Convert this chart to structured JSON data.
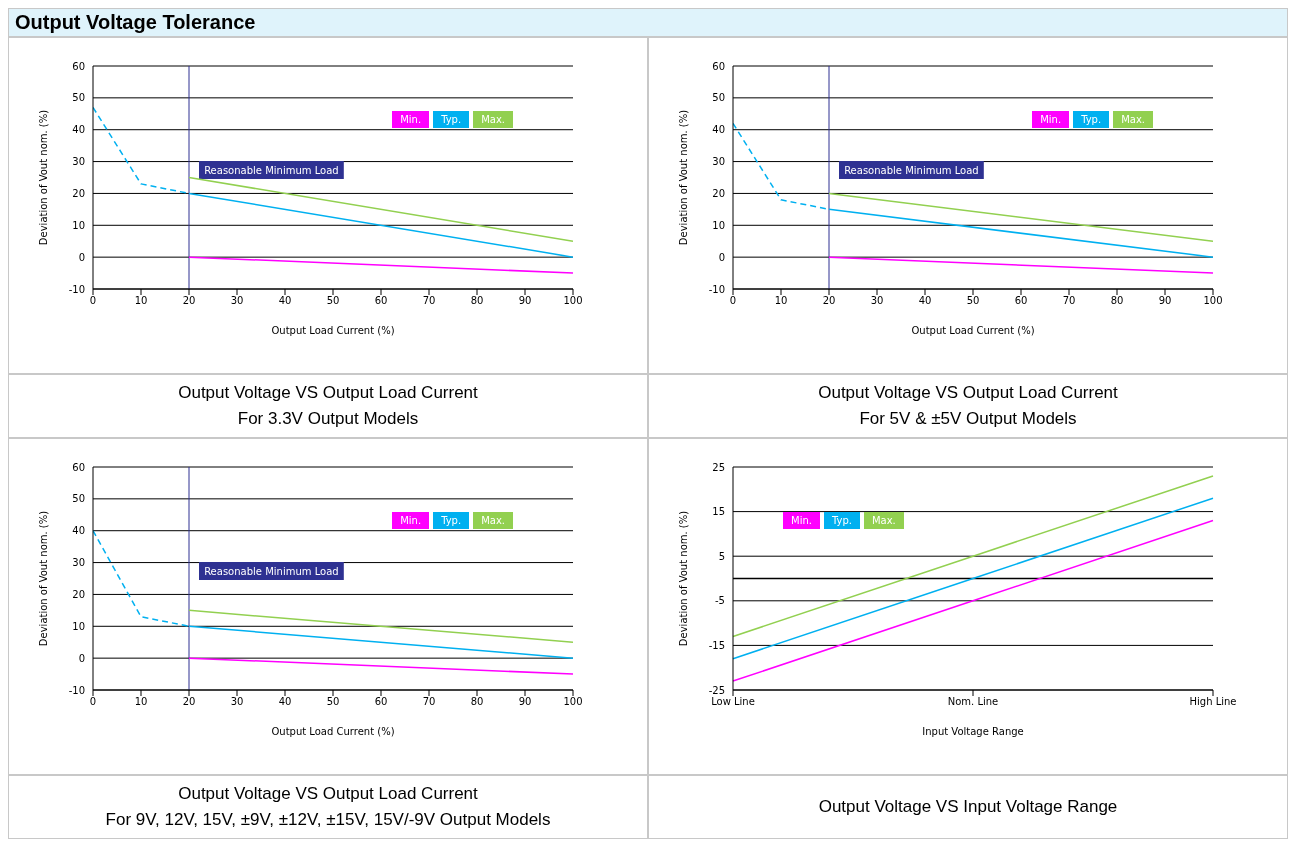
{
  "chart_data": [
    {
      "type": "line",
      "title": "Output Voltage VS Output Load Current",
      "subtitle": "For 3.3V Output Models",
      "annotations": [
        "Output Voltage Tolerance"
      ],
      "xlabel": "Output Load Current (%)",
      "ylabel": "Deviation of Vout nom. (%)",
      "xlim": [
        0,
        100
      ],
      "xticks": [
        0,
        10,
        20,
        30,
        40,
        50,
        60,
        70,
        80,
        90,
        100
      ],
      "ylim": [
        -10,
        60
      ],
      "yticks": [
        -10,
        0,
        10,
        20,
        30,
        40,
        50,
        60
      ],
      "grid": "y",
      "legend": "top right",
      "marker": "none",
      "series": [
        {
          "color": "#00b0f0",
          "line_style": "dashed",
          "x": [
            0,
            10,
            20
          ],
          "values": [
            47,
            23,
            20
          ]
        },
        {
          "name": "Min.",
          "color": "#ff00ff",
          "line_style": "solid",
          "x": [
            20,
            100
          ],
          "values": [
            0,
            -5
          ]
        },
        {
          "name": "Typ.",
          "color": "#00b0f0",
          "line_style": "solid",
          "x": [
            20,
            100
          ],
          "values": [
            20,
            0
          ]
        },
        {
          "name": "Max.",
          "color": "#92d050",
          "line_style": "solid",
          "x": [
            20,
            100
          ],
          "values": [
            25,
            5
          ]
        }
      ],
      "ref_lines": [
        {
          "axis": "x",
          "value": 20,
          "label": "Reasonable Minimum Load",
          "color": "#2e3192"
        }
      ]
    },
    {
      "type": "line",
      "title": "Output Voltage VS Output Load Current",
      "subtitle": "For 5V & ±5V Output Models",
      "xlabel": "Output Load Current (%)",
      "ylabel": "Deviation of Vout nom. (%)",
      "xlim": [
        0,
        100
      ],
      "xticks": [
        0,
        10,
        20,
        30,
        40,
        50,
        60,
        70,
        80,
        90,
        100
      ],
      "ylim": [
        -10,
        60
      ],
      "yticks": [
        -10,
        0,
        10,
        20,
        30,
        40,
        50,
        60
      ],
      "grid": "y",
      "legend": "top right",
      "marker": "none",
      "series": [
        {
          "color": "#00b0f0",
          "line_style": "dashed",
          "x": [
            0,
            10,
            20
          ],
          "values": [
            42,
            18,
            15
          ]
        },
        {
          "name": "Min.",
          "color": "#ff00ff",
          "line_style": "solid",
          "x": [
            20,
            100
          ],
          "values": [
            0,
            -5
          ]
        },
        {
          "name": "Typ.",
          "color": "#00b0f0",
          "line_style": "solid",
          "x": [
            20,
            100
          ],
          "values": [
            15,
            0
          ]
        },
        {
          "name": "Max.",
          "color": "#92d050",
          "line_style": "solid",
          "x": [
            20,
            100
          ],
          "values": [
            20,
            5
          ]
        }
      ],
      "ref_lines": [
        {
          "axis": "x",
          "value": 20,
          "label": "Reasonable Minimum Load",
          "color": "#2e3192"
        }
      ]
    },
    {
      "type": "line",
      "title": "Output Voltage VS Output Load Current",
      "subtitle": "For 9V, 12V, 15V, ±9V, ±12V, ±15V, 15V/-9V Output Models",
      "xlabel": "Output Load Current (%)",
      "ylabel": "Deviation of Vout nom. (%)",
      "xlim": [
        0,
        100
      ],
      "xticks": [
        0,
        10,
        20,
        30,
        40,
        50,
        60,
        70,
        80,
        90,
        100
      ],
      "ylim": [
        -10,
        60
      ],
      "yticks": [
        -10,
        0,
        10,
        20,
        30,
        40,
        50,
        60
      ],
      "grid": "y",
      "legend": "top right",
      "marker": "none",
      "series": [
        {
          "color": "#00b0f0",
          "line_style": "dashed",
          "x": [
            0,
            10,
            20
          ],
          "values": [
            40,
            13,
            10
          ]
        },
        {
          "name": "Min.",
          "color": "#ff00ff",
          "line_style": "solid",
          "x": [
            20,
            100
          ],
          "values": [
            0,
            -5
          ]
        },
        {
          "name": "Typ.",
          "color": "#00b0f0",
          "line_style": "solid",
          "x": [
            20,
            100
          ],
          "values": [
            10,
            0
          ]
        },
        {
          "name": "Max.",
          "color": "#92d050",
          "line_style": "solid",
          "x": [
            20,
            100
          ],
          "values": [
            15,
            5
          ]
        }
      ],
      "ref_lines": [
        {
          "axis": "x",
          "value": 20,
          "label": "Reasonable Minimum Load",
          "color": "#2e3192"
        }
      ]
    },
    {
      "type": "line",
      "title": "Output Voltage VS Input Voltage Range",
      "xlabel": "Input Voltage Range",
      "ylabel": "Deviation of Vout nom. (%)",
      "categories": [
        "Low Line",
        "Nom. Line",
        "High Line"
      ],
      "ylim": [
        -25,
        25
      ],
      "yticks": [
        -25,
        -15,
        -5,
        5,
        15,
        25
      ],
      "grid": "y",
      "legend": "top left",
      "marker": "none",
      "series": [
        {
          "name": "Min.",
          "color": "#ff00ff",
          "line_style": "solid",
          "values": [
            -23,
            -5,
            13
          ]
        },
        {
          "name": "Typ.",
          "color": "#00b0f0",
          "line_style": "solid",
          "values": [
            -18,
            0,
            18
          ]
        },
        {
          "name": "Max.",
          "color": "#92d050",
          "line_style": "solid",
          "values": [
            -13,
            5,
            23
          ]
        }
      ],
      "ref_lines": [
        {
          "axis": "y",
          "value": 0
        }
      ]
    }
  ]
}
